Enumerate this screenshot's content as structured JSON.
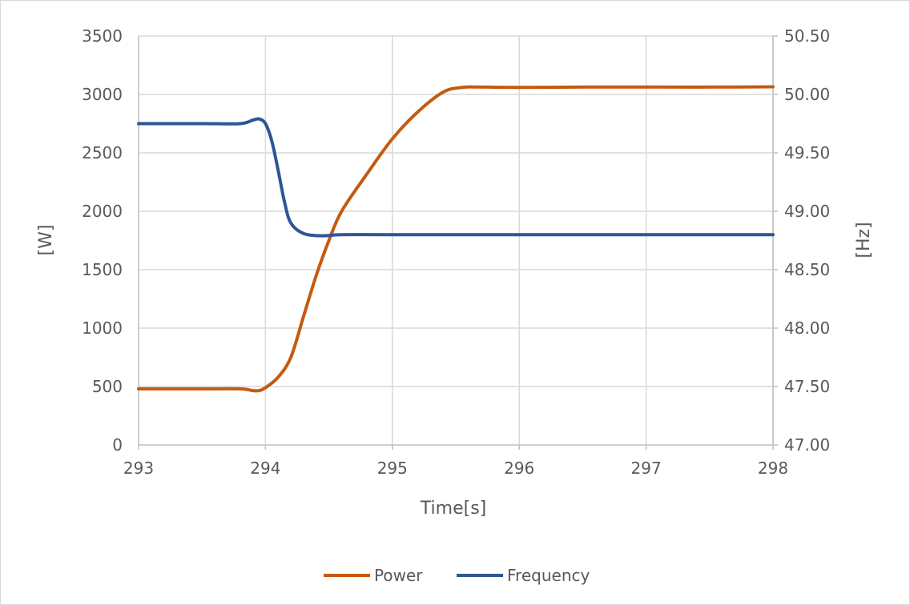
{
  "chart_data": {
    "type": "line",
    "title": "",
    "xlabel": "Time[s]",
    "ylabel_left": "[W]",
    "ylabel_right": "[Hz]",
    "xlim": [
      293,
      298
    ],
    "ylim_left": [
      0,
      3500
    ],
    "ylim_right": [
      47.0,
      50.5
    ],
    "x_ticks": [
      "293",
      "294",
      "295",
      "296",
      "297",
      "298"
    ],
    "y_left_ticks": [
      "0",
      "500",
      "1000",
      "1500",
      "2000",
      "2500",
      "3000",
      "3500"
    ],
    "y_right_ticks": [
      "47.00",
      "47.50",
      "48.00",
      "48.50",
      "49.00",
      "49.50",
      "50.00",
      "50.50"
    ],
    "grid": true,
    "legend_position": "bottom",
    "series": [
      {
        "name": "Power",
        "axis": "left",
        "color": "#C55A11",
        "points": [
          [
            293.0,
            480
          ],
          [
            293.5,
            480
          ],
          [
            293.8,
            480
          ],
          [
            293.9,
            465
          ],
          [
            293.95,
            465
          ],
          [
            294.0,
            490
          ],
          [
            294.1,
            580
          ],
          [
            294.2,
            750
          ],
          [
            294.3,
            1100
          ],
          [
            294.4,
            1450
          ],
          [
            294.5,
            1750
          ],
          [
            294.6,
            2000
          ],
          [
            294.8,
            2320
          ],
          [
            295.0,
            2620
          ],
          [
            295.2,
            2850
          ],
          [
            295.4,
            3020
          ],
          [
            295.55,
            3060
          ],
          [
            295.7,
            3063
          ],
          [
            296.0,
            3060
          ],
          [
            296.5,
            3063
          ],
          [
            297.0,
            3063
          ],
          [
            297.5,
            3063
          ],
          [
            298.0,
            3065
          ]
        ]
      },
      {
        "name": "Frequency",
        "axis": "right",
        "color": "#2F5597",
        "points": [
          [
            293.0,
            49.75
          ],
          [
            293.5,
            49.75
          ],
          [
            293.8,
            49.75
          ],
          [
            293.9,
            49.78
          ],
          [
            293.95,
            49.79
          ],
          [
            294.0,
            49.75
          ],
          [
            294.05,
            49.6
          ],
          [
            294.1,
            49.35
          ],
          [
            294.15,
            49.08
          ],
          [
            294.2,
            48.9
          ],
          [
            294.3,
            48.81
          ],
          [
            294.45,
            48.79
          ],
          [
            294.6,
            48.8
          ],
          [
            295.0,
            48.8
          ],
          [
            296.0,
            48.8
          ],
          [
            297.0,
            48.8
          ],
          [
            298.0,
            48.8
          ]
        ]
      }
    ]
  }
}
